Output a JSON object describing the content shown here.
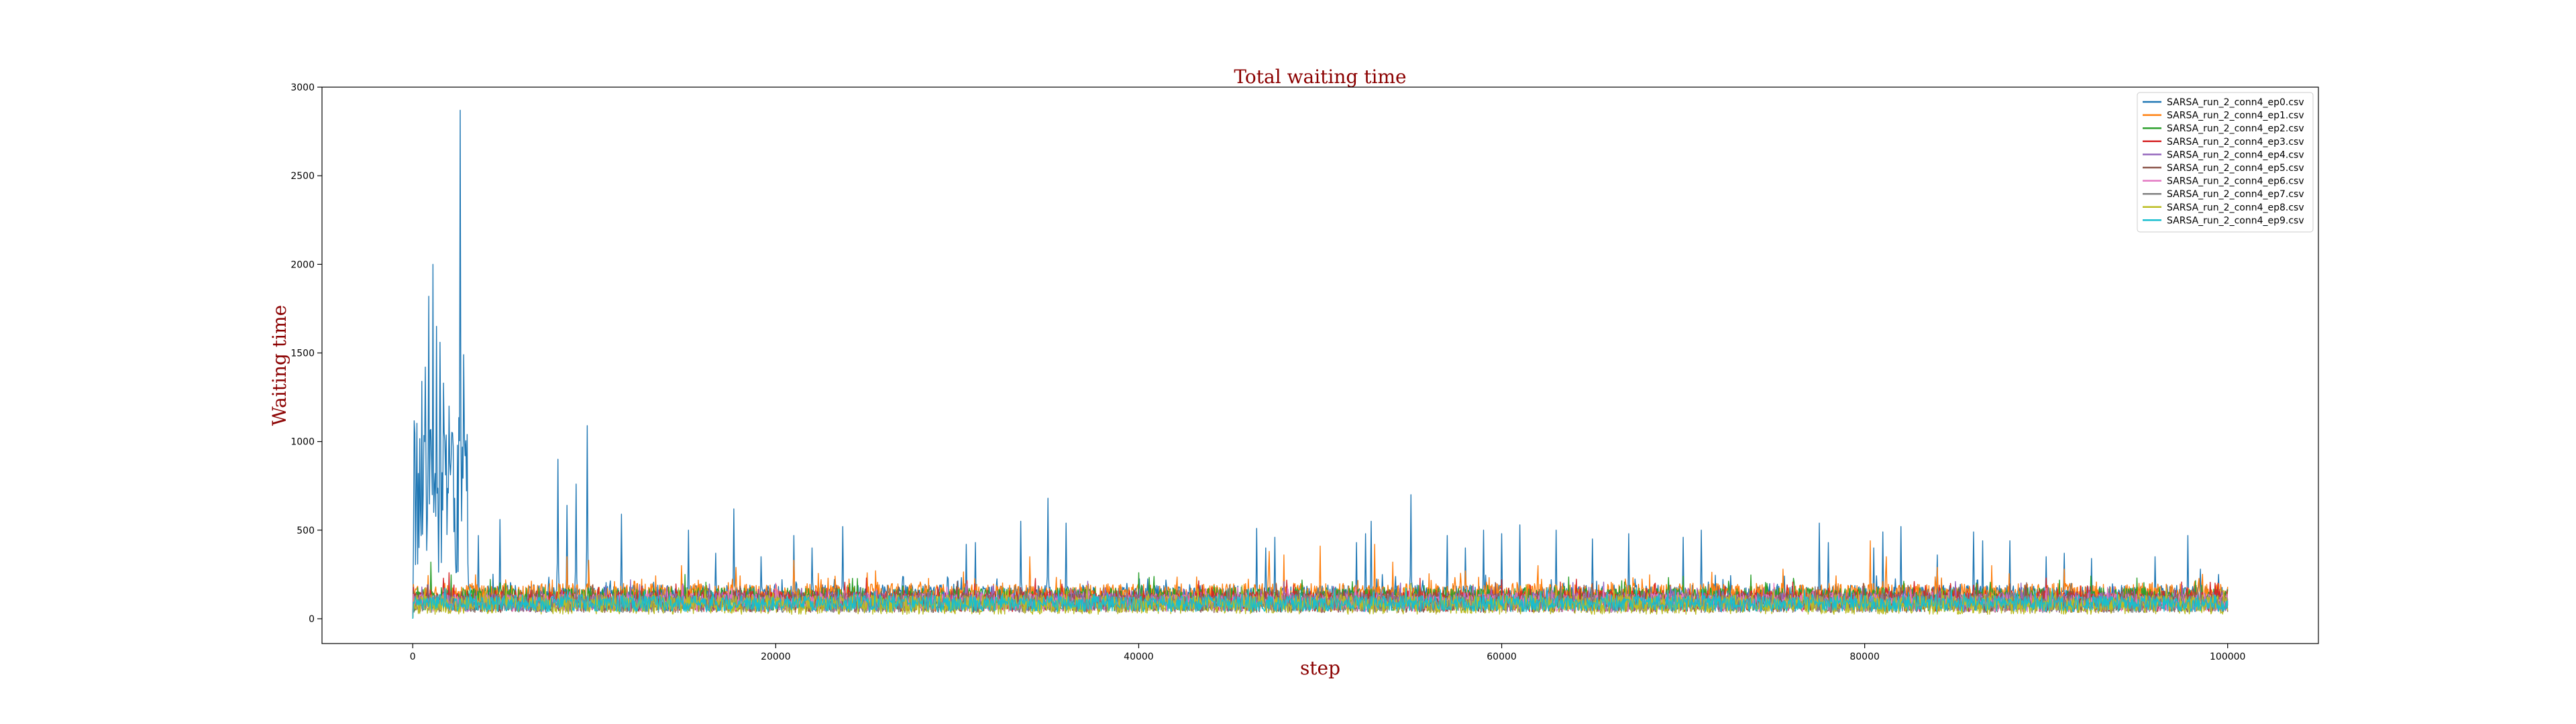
{
  "chart_data": {
    "type": "line",
    "title": "Total waiting time",
    "xlabel": "step",
    "ylabel": "Waiting time",
    "xlim": [
      -5000,
      105000
    ],
    "ylim": [
      -140,
      3000
    ],
    "xticks": [
      0,
      20000,
      40000,
      60000,
      80000,
      100000
    ],
    "yticks": [
      0,
      500,
      1000,
      1500,
      2000,
      2500,
      3000
    ],
    "grid": false,
    "legend_position": "top-right",
    "series": [
      {
        "name": "SARSA_run_2_conn4_ep0.csv",
        "color": "#1f77b4",
        "base": 130,
        "noise": 60,
        "spikes": [
          [
            300,
            820
          ],
          [
            500,
            1340
          ],
          [
            700,
            1420
          ],
          [
            900,
            1820
          ],
          [
            1100,
            2000
          ],
          [
            1300,
            1650
          ],
          [
            1500,
            1560
          ],
          [
            1700,
            1330
          ],
          [
            2000,
            1200
          ],
          [
            2300,
            680
          ],
          [
            2600,
            2870
          ],
          [
            2800,
            1490
          ],
          [
            3000,
            1040
          ],
          [
            3600,
            470
          ],
          [
            4800,
            560
          ],
          [
            8000,
            900
          ],
          [
            8500,
            640
          ],
          [
            9000,
            760
          ],
          [
            9600,
            1090
          ],
          [
            11500,
            590
          ],
          [
            15200,
            500
          ],
          [
            16700,
            370
          ],
          [
            17700,
            620
          ],
          [
            19200,
            350
          ],
          [
            21000,
            470
          ],
          [
            22000,
            400
          ],
          [
            23700,
            520
          ],
          [
            30500,
            420
          ],
          [
            31000,
            430
          ],
          [
            33500,
            550
          ],
          [
            35000,
            680
          ],
          [
            36000,
            540
          ],
          [
            46500,
            510
          ],
          [
            47000,
            400
          ],
          [
            47500,
            460
          ],
          [
            52000,
            430
          ],
          [
            52500,
            480
          ],
          [
            52800,
            550
          ],
          [
            55000,
            700
          ],
          [
            57000,
            470
          ],
          [
            58000,
            400
          ],
          [
            59000,
            500
          ],
          [
            60000,
            480
          ],
          [
            61000,
            530
          ],
          [
            63000,
            500
          ],
          [
            65000,
            450
          ],
          [
            67000,
            480
          ],
          [
            70000,
            460
          ],
          [
            71000,
            500
          ],
          [
            77500,
            540
          ],
          [
            78000,
            430
          ],
          [
            80500,
            400
          ],
          [
            81000,
            490
          ],
          [
            82000,
            520
          ],
          [
            84000,
            360
          ],
          [
            86000,
            490
          ],
          [
            86500,
            440
          ],
          [
            88000,
            440
          ],
          [
            90000,
            350
          ],
          [
            91000,
            370
          ],
          [
            92500,
            340
          ],
          [
            96000,
            350
          ],
          [
            97800,
            470
          ],
          [
            98500,
            280
          ],
          [
            99500,
            250
          ]
        ]
      },
      {
        "name": "SARSA_run_2_conn4_ep1.csv",
        "color": "#ff7f0e",
        "base": 130,
        "noise": 70,
        "spikes": [
          [
            8500,
            350
          ],
          [
            9700,
            330
          ],
          [
            14800,
            300
          ],
          [
            17800,
            290
          ],
          [
            21000,
            330
          ],
          [
            34000,
            350
          ],
          [
            47200,
            380
          ],
          [
            48000,
            360
          ],
          [
            50000,
            410
          ],
          [
            53000,
            420
          ],
          [
            54000,
            320
          ],
          [
            58000,
            270
          ],
          [
            62000,
            300
          ],
          [
            75500,
            280
          ],
          [
            80300,
            440
          ],
          [
            81200,
            350
          ],
          [
            84000,
            290
          ],
          [
            87000,
            300
          ],
          [
            91000,
            280
          ]
        ]
      },
      {
        "name": "SARSA_run_2_conn4_ep2.csv",
        "color": "#2ca02c",
        "base": 110,
        "noise": 65,
        "spikes": [
          [
            1000,
            320
          ],
          [
            15000,
            250
          ],
          [
            40000,
            260
          ],
          [
            70000,
            240
          ],
          [
            95000,
            230
          ]
        ]
      },
      {
        "name": "SARSA_run_2_conn4_ep3.csv",
        "color": "#d62728",
        "base": 100,
        "noise": 60,
        "spikes": [
          [
            2000,
            260
          ],
          [
            25000,
            230
          ],
          [
            60000,
            220
          ],
          [
            90000,
            230
          ]
        ]
      },
      {
        "name": "SARSA_run_2_conn4_ep4.csv",
        "color": "#9467bd",
        "base": 95,
        "noise": 55,
        "spikes": [
          [
            12000,
            220
          ],
          [
            48000,
            210
          ],
          [
            85000,
            210
          ]
        ]
      },
      {
        "name": "SARSA_run_2_conn4_ep5.csv",
        "color": "#8c564b",
        "base": 90,
        "noise": 55,
        "spikes": [
          [
            30000,
            210
          ],
          [
            65000,
            200
          ]
        ]
      },
      {
        "name": "SARSA_run_2_conn4_ep6.csv",
        "color": "#e377c2",
        "base": 90,
        "noise": 50,
        "spikes": [
          [
            20000,
            200
          ],
          [
            75000,
            200
          ]
        ]
      },
      {
        "name": "SARSA_run_2_conn4_ep7.csv",
        "color": "#7f7f7f",
        "base": 85,
        "noise": 50,
        "spikes": [
          [
            45000,
            190
          ]
        ]
      },
      {
        "name": "SARSA_run_2_conn4_ep8.csv",
        "color": "#bcbd22",
        "base": 80,
        "noise": 55,
        "spikes": [
          [
            55000,
            200
          ]
        ]
      },
      {
        "name": "SARSA_run_2_conn4_ep9.csv",
        "color": "#17becf",
        "base": 85,
        "noise": 45,
        "spikes": []
      }
    ]
  }
}
